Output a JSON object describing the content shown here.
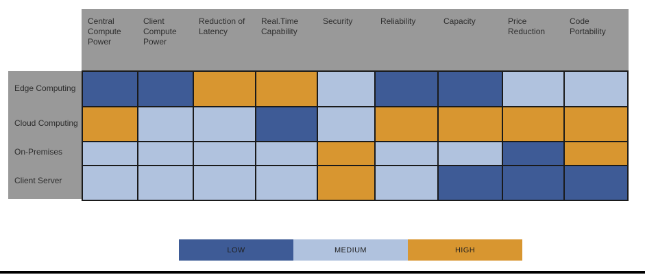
{
  "chart_data": {
    "type": "heatmap",
    "columns": [
      "Central Compute Power",
      "Client Compute Power",
      "Reduction of Latency",
      "Real.Time Capability",
      "Security",
      "Reliability",
      "Capacity",
      "Price Reduction",
      "Code Portability"
    ],
    "rows": [
      "Edge Computing",
      "Cloud Computing",
      "On-Premises",
      "Client Server"
    ],
    "values": [
      [
        "LOW",
        "LOW",
        "HIGH",
        "HIGH",
        "MEDIUM",
        "LOW",
        "LOW",
        "MEDIUM",
        "MEDIUM"
      ],
      [
        "HIGH",
        "MEDIUM",
        "MEDIUM",
        "LOW",
        "MEDIUM",
        "HIGH",
        "HIGH",
        "HIGH",
        "HIGH"
      ],
      [
        "MEDIUM",
        "MEDIUM",
        "MEDIUM",
        "MEDIUM",
        "HIGH",
        "MEDIUM",
        "MEDIUM",
        "LOW",
        "HIGH"
      ],
      [
        "MEDIUM",
        "MEDIUM",
        "MEDIUM",
        "MEDIUM",
        "HIGH",
        "MEDIUM",
        "LOW",
        "LOW",
        "LOW"
      ]
    ],
    "legend": {
      "position": "bottom",
      "items": [
        {
          "label": "LOW",
          "color": "#3E5B96"
        },
        {
          "label": "MEDIUM",
          "color": "#B0C2DE"
        },
        {
          "label": "HIGH",
          "color": "#D89630"
        }
      ]
    },
    "colors": {
      "LOW": "#3E5B96",
      "MEDIUM": "#B0C2DE",
      "HIGH": "#D89630",
      "header_background": "#999999",
      "grid_line": "#1A1A1A",
      "label_text": "#2D2D2D"
    }
  }
}
